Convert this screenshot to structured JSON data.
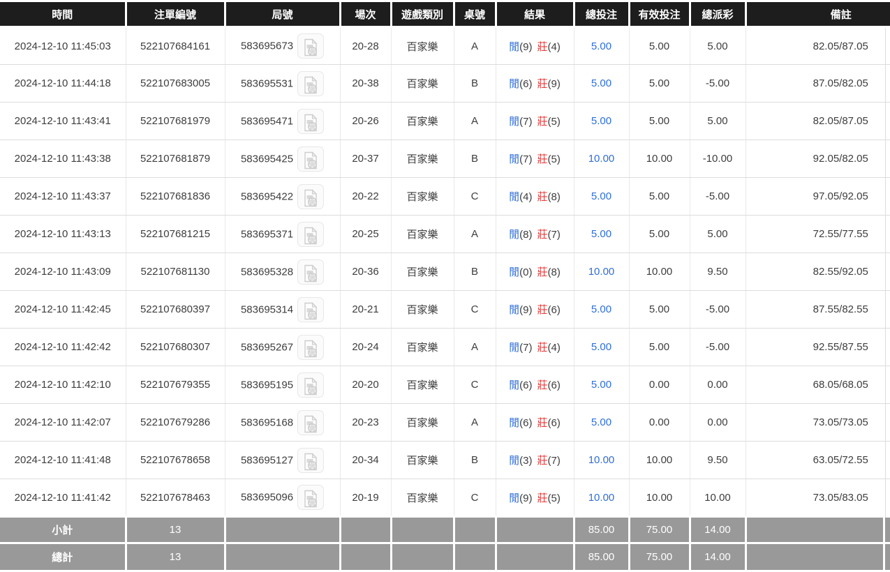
{
  "table": {
    "columns": [
      {
        "key": "time",
        "label": "時間"
      },
      {
        "key": "bet_id",
        "label": "注單編號"
      },
      {
        "key": "round",
        "label": "局號"
      },
      {
        "key": "session",
        "label": "場次"
      },
      {
        "key": "game_type",
        "label": "遊戲類別"
      },
      {
        "key": "table_no",
        "label": "桌號"
      },
      {
        "key": "result",
        "label": "結果"
      },
      {
        "key": "total_bet",
        "label": "總投注"
      },
      {
        "key": "valid_bet",
        "label": "有效投注"
      },
      {
        "key": "payout",
        "label": "總派彩"
      },
      {
        "key": "remark",
        "label": "備註"
      }
    ]
  },
  "result_labels": {
    "player": "閒",
    "banker": "莊"
  },
  "icons": {
    "round_replay": "video-file-icon"
  },
  "colors": {
    "header_bg": "#1d1d1d",
    "footer_bg": "#999999",
    "link_blue": "#2e6ed9",
    "loss_red": "#e03c3c"
  },
  "rows": [
    {
      "time": "2024-12-10 11:45:03",
      "bet_id": "522107684161",
      "round": "583695673",
      "session": "20-28",
      "game": "百家樂",
      "table": "A",
      "result": {
        "player": "9",
        "banker": "4"
      },
      "total_bet": "5.00",
      "valid_bet": "5.00",
      "payout": "5.00",
      "remark": "82.05/87.05"
    },
    {
      "time": "2024-12-10 11:44:18",
      "bet_id": "522107683005",
      "round": "583695531",
      "session": "20-38",
      "game": "百家樂",
      "table": "B",
      "result": {
        "player": "6",
        "banker": "9"
      },
      "total_bet": "5.00",
      "valid_bet": "5.00",
      "payout": "-5.00",
      "remark": "87.05/82.05"
    },
    {
      "time": "2024-12-10 11:43:41",
      "bet_id": "522107681979",
      "round": "583695471",
      "session": "20-26",
      "game": "百家樂",
      "table": "A",
      "result": {
        "player": "7",
        "banker": "5"
      },
      "total_bet": "5.00",
      "valid_bet": "5.00",
      "payout": "5.00",
      "remark": "82.05/87.05"
    },
    {
      "time": "2024-12-10 11:43:38",
      "bet_id": "522107681879",
      "round": "583695425",
      "session": "20-37",
      "game": "百家樂",
      "table": "B",
      "result": {
        "player": "7",
        "banker": "5"
      },
      "total_bet": "10.00",
      "valid_bet": "10.00",
      "payout": "-10.00",
      "remark": "92.05/82.05"
    },
    {
      "time": "2024-12-10 11:43:37",
      "bet_id": "522107681836",
      "round": "583695422",
      "session": "20-22",
      "game": "百家樂",
      "table": "C",
      "result": {
        "player": "4",
        "banker": "8"
      },
      "total_bet": "5.00",
      "valid_bet": "5.00",
      "payout": "-5.00",
      "remark": "97.05/92.05"
    },
    {
      "time": "2024-12-10 11:43:13",
      "bet_id": "522107681215",
      "round": "583695371",
      "session": "20-25",
      "game": "百家樂",
      "table": "A",
      "result": {
        "player": "8",
        "banker": "7"
      },
      "total_bet": "5.00",
      "valid_bet": "5.00",
      "payout": "5.00",
      "remark": "72.55/77.55"
    },
    {
      "time": "2024-12-10 11:43:09",
      "bet_id": "522107681130",
      "round": "583695328",
      "session": "20-36",
      "game": "百家樂",
      "table": "B",
      "result": {
        "player": "0",
        "banker": "8"
      },
      "total_bet": "10.00",
      "valid_bet": "10.00",
      "payout": "9.50",
      "remark": "82.55/92.05"
    },
    {
      "time": "2024-12-10 11:42:45",
      "bet_id": "522107680397",
      "round": "583695314",
      "session": "20-21",
      "game": "百家樂",
      "table": "C",
      "result": {
        "player": "9",
        "banker": "6"
      },
      "total_bet": "5.00",
      "valid_bet": "5.00",
      "payout": "-5.00",
      "remark": "87.55/82.55"
    },
    {
      "time": "2024-12-10 11:42:42",
      "bet_id": "522107680307",
      "round": "583695267",
      "session": "20-24",
      "game": "百家樂",
      "table": "A",
      "result": {
        "player": "7",
        "banker": "4"
      },
      "total_bet": "5.00",
      "valid_bet": "5.00",
      "payout": "-5.00",
      "remark": "92.55/87.55"
    },
    {
      "time": "2024-12-10 11:42:10",
      "bet_id": "522107679355",
      "round": "583695195",
      "session": "20-20",
      "game": "百家樂",
      "table": "C",
      "result": {
        "player": "6",
        "banker": "6"
      },
      "total_bet": "5.00",
      "valid_bet": "0.00",
      "payout": "0.00",
      "remark": "68.05/68.05"
    },
    {
      "time": "2024-12-10 11:42:07",
      "bet_id": "522107679286",
      "round": "583695168",
      "session": "20-23",
      "game": "百家樂",
      "table": "A",
      "result": {
        "player": "6",
        "banker": "6"
      },
      "total_bet": "5.00",
      "valid_bet": "0.00",
      "payout": "0.00",
      "remark": "73.05/73.05"
    },
    {
      "time": "2024-12-10 11:41:48",
      "bet_id": "522107678658",
      "round": "583695127",
      "session": "20-34",
      "game": "百家樂",
      "table": "B",
      "result": {
        "player": "3",
        "banker": "7"
      },
      "total_bet": "10.00",
      "valid_bet": "10.00",
      "payout": "9.50",
      "remark": "63.05/72.55"
    },
    {
      "time": "2024-12-10 11:41:42",
      "bet_id": "522107678463",
      "round": "583695096",
      "session": "20-19",
      "game": "百家樂",
      "table": "C",
      "result": {
        "player": "9",
        "banker": "5"
      },
      "total_bet": "10.00",
      "valid_bet": "10.00",
      "payout": "10.00",
      "remark": "73.05/83.05"
    }
  ],
  "footer": {
    "subtotal": {
      "label": "小計",
      "count": "13",
      "total_bet": "85.00",
      "valid_bet": "75.00",
      "payout": "14.00"
    },
    "total": {
      "label": "總計",
      "count": "13",
      "total_bet": "85.00",
      "valid_bet": "75.00",
      "payout": "14.00"
    }
  }
}
